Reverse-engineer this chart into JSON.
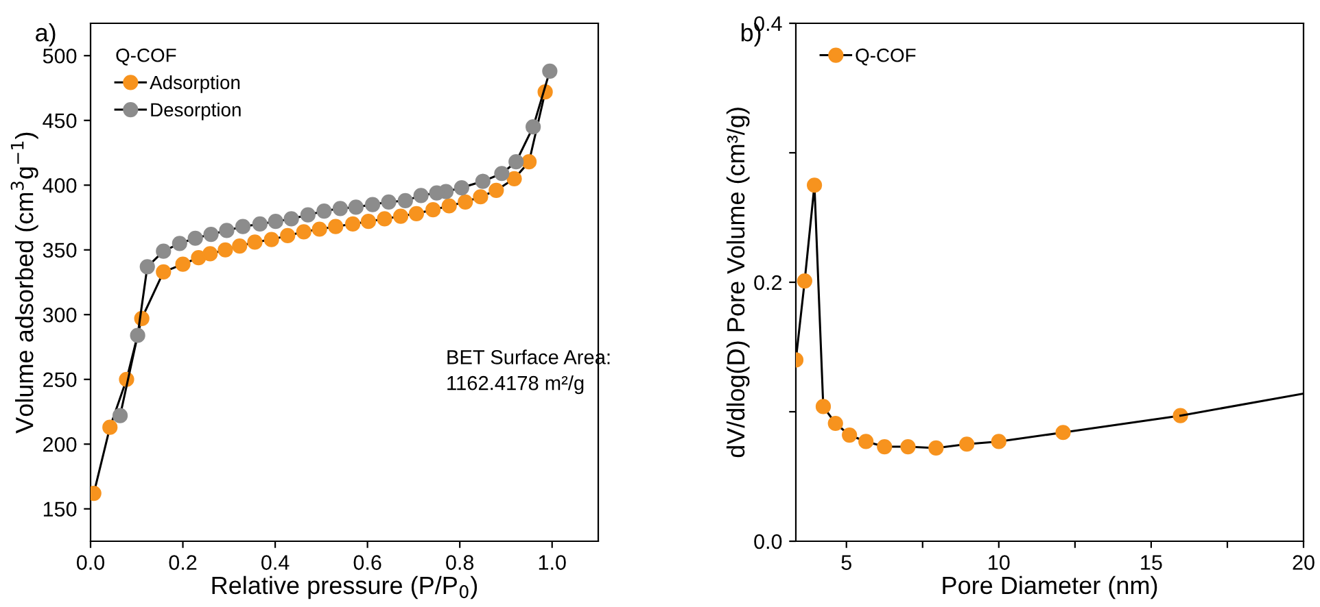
{
  "chart_data": [
    {
      "type": "line",
      "xlabel": "Relative pressure (P/P$_{0}$)",
      "ylabel": "Volume adsorbed (cm$^{3}$g$^{−1}$)",
      "legend_title": "Q-COF",
      "legend": "top left",
      "marker": "circle",
      "line_style": "solid",
      "annotations": [
        "a)",
        "BET Surface Area:\n1162.4178 m²/g"
      ],
      "xlim": [
        0,
        1.1
      ],
      "ylim": [
        125,
        525
      ],
      "xticks": [
        {
          "value": 0,
          "label": "0.0"
        },
        0.2,
        0.4,
        0.6,
        0.8,
        {
          "value": 1,
          "label": "1.0"
        }
      ],
      "yticks": [
        150,
        200,
        250,
        300,
        350,
        400,
        450,
        500
      ],
      "series": [
        {
          "name": "Adsorption",
          "color": "#f7931e",
          "x": [
            0.007,
            0.042,
            0.078,
            0.111,
            0.158,
            0.2,
            0.234,
            0.259,
            0.292,
            0.323,
            0.356,
            0.392,
            0.427,
            0.462,
            0.496,
            0.531,
            0.568,
            0.602,
            0.637,
            0.672,
            0.706,
            0.742,
            0.777,
            0.812,
            0.845,
            0.879,
            0.918,
            0.95,
            0.985
          ],
          "values": [
            162,
            213,
            250,
            297,
            333,
            339,
            344,
            347,
            350,
            353,
            356,
            358,
            361,
            364,
            366,
            368,
            370,
            372,
            374,
            376,
            378,
            381,
            384,
            387,
            391,
            396,
            405,
            418,
            472
          ]
        },
        {
          "name": "Desorption",
          "color": "#8c8c8c",
          "x": [
            0.995,
            0.959,
            0.922,
            0.891,
            0.85,
            0.804,
            0.77,
            0.75,
            0.716,
            0.682,
            0.646,
            0.611,
            0.575,
            0.541,
            0.506,
            0.471,
            0.435,
            0.401,
            0.367,
            0.33,
            0.295,
            0.261,
            0.227,
            0.193,
            0.158,
            0.123,
            0.102,
            0.064
          ],
          "values": [
            488,
            445,
            418,
            409,
            403,
            398,
            395,
            394,
            392,
            388,
            387,
            385,
            383,
            382,
            380,
            377,
            374,
            372,
            370,
            368,
            365,
            362,
            359,
            355,
            349,
            337,
            284,
            222
          ]
        }
      ]
    },
    {
      "type": "line",
      "xlabel": "Pore Diameter (nm)",
      "ylabel": "dV/dlog(D) Pore Volume (cm³/g)",
      "legend": "top left",
      "line_style": "solid",
      "annotations": [
        "b)"
      ],
      "xlim": [
        3.34,
        20
      ],
      "ylim": [
        0,
        0.4
      ],
      "xticks": [
        5,
        {
          "value": 7.5,
          "label": null
        },
        10,
        {
          "value": 12.5,
          "label": null
        },
        15,
        {
          "value": 17.5,
          "label": null
        },
        20
      ],
      "yticks": [
        {
          "value": 0,
          "label": "0.0"
        },
        {
          "value": 0.1,
          "label": null
        },
        0.2,
        {
          "value": 0.3,
          "label": null
        },
        0.4
      ],
      "series": [
        {
          "name": "Q-COF",
          "color": "#f7931e",
          "marker": "circle",
          "x": [
            3.34,
            3.63,
            3.95,
            4.24,
            4.64,
            5.1,
            5.64,
            6.25,
            7.02,
            7.94,
            8.95,
            10.0,
            12.11,
            15.96
          ],
          "values": [
            0.14,
            0.201,
            0.275,
            0.104,
            0.091,
            0.082,
            0.077,
            0.073,
            0.073,
            0.072,
            0.075,
            0.077,
            0.084,
            0.097
          ]
        },
        {
          "color": "#000000",
          "marker": "none",
          "x": [
            15.96,
            20
          ],
          "values": [
            0.097,
            0.114
          ]
        }
      ]
    }
  ]
}
